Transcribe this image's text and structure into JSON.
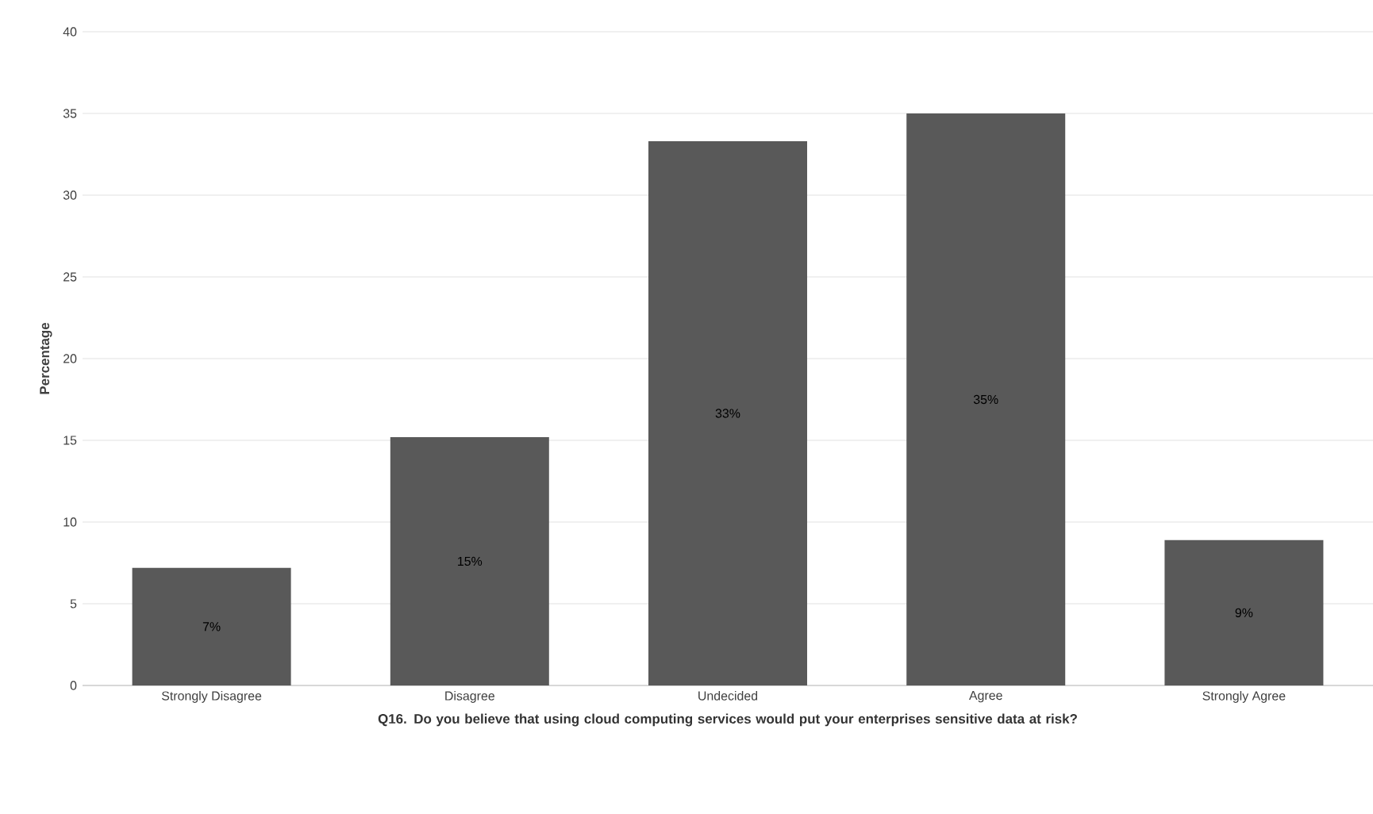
{
  "chart_data": {
    "type": "bar",
    "categories": [
      "Strongly Disagree",
      "Disagree",
      "Undecided",
      "Agree",
      "Strongly Agree"
    ],
    "values": [
      7.2,
      15.2,
      33.3,
      35,
      8.9
    ],
    "value_labels": [
      "7%",
      "15%",
      "33%",
      "35%",
      "9%"
    ],
    "color": "#595959",
    "ylabel": "Percentage",
    "xlabel": "Q16. Do you believe that using cloud computing services would put your enterprises sensitive data at risk?",
    "ylim": [
      0,
      40
    ],
    "yticks": [
      0,
      5,
      10,
      15,
      20,
      25,
      30,
      35,
      40
    ],
    "grid": "y"
  }
}
